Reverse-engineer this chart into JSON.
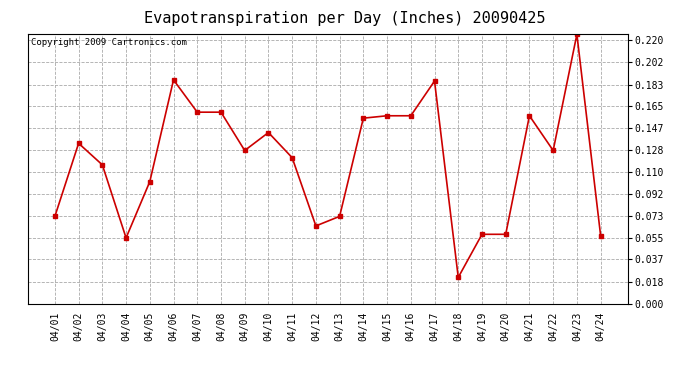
{
  "title": "Evapotranspiration per Day (Inches) 20090425",
  "copyright_text": "Copyright 2009 Cartronics.com",
  "dates": [
    "04/01",
    "04/02",
    "04/03",
    "04/04",
    "04/05",
    "04/06",
    "04/07",
    "04/08",
    "04/09",
    "04/10",
    "04/11",
    "04/12",
    "04/13",
    "04/14",
    "04/15",
    "04/16",
    "04/17",
    "04/18",
    "04/19",
    "04/20",
    "04/21",
    "04/22",
    "04/23",
    "04/24"
  ],
  "values": [
    0.073,
    0.134,
    0.116,
    0.055,
    0.102,
    0.187,
    0.16,
    0.16,
    0.128,
    0.143,
    0.122,
    0.065,
    0.073,
    0.155,
    0.157,
    0.157,
    0.186,
    0.022,
    0.058,
    0.058,
    0.157,
    0.128,
    0.225,
    0.057
  ],
  "line_color": "#cc0000",
  "marker": "s",
  "marker_size": 3,
  "bg_color": "#ffffff",
  "grid_color": "#aaaaaa",
  "ylim_min": 0.0,
  "ylim_max": 0.2255,
  "yticks": [
    0.0,
    0.018,
    0.037,
    0.055,
    0.073,
    0.092,
    0.11,
    0.128,
    0.147,
    0.165,
    0.183,
    0.202,
    0.22
  ],
  "title_fontsize": 11,
  "tick_fontsize": 7,
  "copyright_fontsize": 6.5
}
